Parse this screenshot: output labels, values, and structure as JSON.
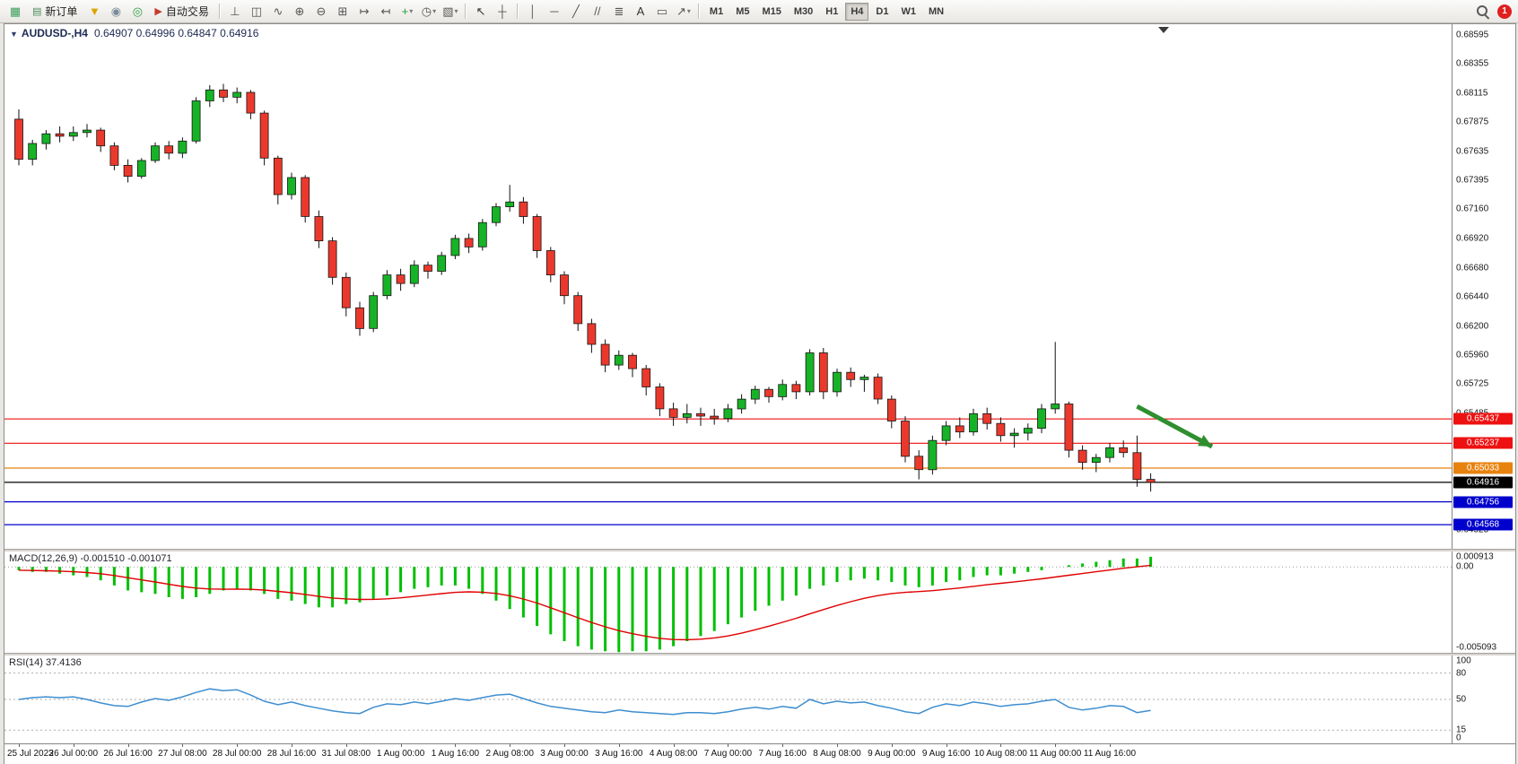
{
  "toolbar": {
    "items": [
      {
        "kind": "icon",
        "name": "new-chart-icon",
        "glyph": "▦",
        "color": "#3a9e5a"
      },
      {
        "kind": "label-button",
        "name": "new-order-button",
        "icon_glyph": "▤",
        "icon_color": "#4a8a5a",
        "label": "新订单"
      },
      {
        "kind": "icon",
        "name": "profiles-icon",
        "glyph": "▼",
        "color": "#dfa400"
      },
      {
        "kind": "icon",
        "name": "market-watch-icon",
        "glyph": "◉",
        "color": "#7b8a99"
      },
      {
        "kind": "icon",
        "name": "community-icon",
        "glyph": "◎",
        "color": "#2f9e44"
      },
      {
        "kind": "label-button",
        "name": "auto-trading-button",
        "icon_glyph": "▶",
        "icon_color": "#c43b2e",
        "label": "自动交易"
      },
      {
        "kind": "sep"
      },
      {
        "kind": "icon",
        "name": "bar-chart-icon",
        "glyph": "⊥",
        "color": "#555555"
      },
      {
        "kind": "icon",
        "name": "candlestick-chart-icon",
        "glyph": "◫",
        "color": "#555555"
      },
      {
        "kind": "icon",
        "name": "line-chart-icon",
        "glyph": "∿",
        "color": "#555555"
      },
      {
        "kind": "icon",
        "name": "zoom-in-icon",
        "glyph": "⊕",
        "color": "#555555"
      },
      {
        "kind": "icon",
        "name": "zoom-out-icon",
        "glyph": "⊖",
        "color": "#555555"
      },
      {
        "kind": "icon",
        "name": "tile-windows-icon",
        "glyph": "⊞",
        "color": "#555555"
      },
      {
        "kind": "icon",
        "name": "auto-scroll-icon",
        "glyph": "↦",
        "color": "#555555"
      },
      {
        "kind": "icon",
        "name": "chart-shift-icon",
        "glyph": "↤",
        "color": "#555555"
      },
      {
        "kind": "icon",
        "name": "indicators-icon",
        "glyph": "+",
        "color": "#1f9e3f",
        "caret": true
      },
      {
        "kind": "icon",
        "name": "periods-icon",
        "glyph": "◷",
        "color": "#555555",
        "caret": true
      },
      {
        "kind": "icon",
        "name": "templates-icon",
        "glyph": "▧",
        "color": "#555555",
        "caret": true
      },
      {
        "kind": "sep"
      },
      {
        "kind": "icon",
        "name": "cursor-icon",
        "glyph": "↖",
        "color": "#333333"
      },
      {
        "kind": "icon",
        "name": "crosshair-icon",
        "glyph": "┼",
        "color": "#555555"
      },
      {
        "kind": "sep"
      },
      {
        "kind": "icon",
        "name": "vertical-line-icon",
        "glyph": "│",
        "color": "#555555"
      },
      {
        "kind": "icon",
        "name": "horizontal-line-icon",
        "glyph": "─",
        "color": "#555555"
      },
      {
        "kind": "icon",
        "name": "trendline-icon",
        "glyph": "╱",
        "color": "#555555"
      },
      {
        "kind": "icon",
        "name": "channel-icon",
        "glyph": "//",
        "color": "#555555"
      },
      {
        "kind": "icon",
        "name": "fibonacci-icon",
        "glyph": "≣",
        "color": "#555555"
      },
      {
        "kind": "icon",
        "name": "text-icon",
        "glyph": "A",
        "color": "#333333"
      },
      {
        "kind": "icon",
        "name": "text-label-icon",
        "glyph": "▭",
        "color": "#555555"
      },
      {
        "kind": "icon",
        "name": "arrows-icon",
        "glyph": "↗",
        "color": "#555555",
        "caret": true
      },
      {
        "kind": "sep"
      }
    ],
    "timeframes": [
      "M1",
      "M5",
      "M15",
      "M30",
      "H1",
      "H4",
      "D1",
      "W1",
      "MN"
    ],
    "active_timeframe": "H4",
    "notification_count": "1"
  },
  "chart": {
    "collapse_icon": "▼",
    "title_symbol": "AUDUSD-,H4",
    "title_ohlc": "0.64907 0.64996 0.64847 0.64916"
  },
  "chart_data": {
    "type": "candlestick",
    "symbol_period": "AUDUSD-,H4",
    "ohlc_current": {
      "open": "0.64907",
      "high": "0.64996",
      "low": "0.64847",
      "close": "0.64916"
    },
    "y_axis_range": {
      "min": 0.6437,
      "max": 0.6868
    },
    "price_axis_labels": [
      "0.68595",
      "0.68355",
      "0.68115",
      "0.67875",
      "0.67635",
      "0.67395",
      "0.67160",
      "0.66920",
      "0.66680",
      "0.66440",
      "0.66200",
      "0.65960",
      "0.65725",
      "0.65485",
      "0.65245",
      "0.65005",
      "0.64765",
      "0.64525"
    ],
    "x_time_labels": [
      "25 Jul 2023",
      "26 Jul 00:00",
      "26 Jul 16:00",
      "27 Jul 08:00",
      "28 Jul 00:00",
      "28 Jul 16:00",
      "31 Jul 08:00",
      "1 Aug 00:00",
      "1 Aug 16:00",
      "2 Aug 08:00",
      "3 Aug 00:00",
      "3 Aug 16:00",
      "4 Aug 08:00",
      "7 Aug 00:00",
      "7 Aug 16:00",
      "8 Aug 08:00",
      "9 Aug 00:00",
      "9 Aug 16:00",
      "10 Aug 08:00",
      "11 Aug 00:00",
      "11 Aug 16:00"
    ],
    "horizontal_lines": [
      {
        "price": 0.65437,
        "color": "#ee1111",
        "label": "0.65437",
        "tag_bg": "#ee1111"
      },
      {
        "price": 0.65237,
        "color": "#ee1111",
        "label": "0.65237",
        "tag_bg": "#ee1111"
      },
      {
        "price": 0.65033,
        "color": "#e8820e",
        "label": "0.65033",
        "tag_bg": "#e8820e"
      },
      {
        "price": 0.64916,
        "color": "#000000",
        "label": "0.64916",
        "tag_bg": "#000000"
      },
      {
        "price": 0.64756,
        "color": "#0000cc",
        "label": "0.64756",
        "tag_bg": "#0000cc"
      },
      {
        "price": 0.64568,
        "color": "#0000cc",
        "label": "0.64568",
        "tag_bg": "#0000cc"
      }
    ],
    "colors": {
      "up": "#17b327",
      "down": "#ea392c",
      "wick": "#111111",
      "macd_bar": "#00c000",
      "macd_signal": "#e00000",
      "rsi_line": "#3e8ed0"
    },
    "candles_ohlc": [
      [
        0.679,
        0.6798,
        0.6752,
        0.6757
      ],
      [
        0.6757,
        0.6773,
        0.6752,
        0.677
      ],
      [
        0.677,
        0.6781,
        0.6765,
        0.6778
      ],
      [
        0.6778,
        0.6784,
        0.6771,
        0.6776
      ],
      [
        0.6776,
        0.6784,
        0.6772,
        0.6779
      ],
      [
        0.6779,
        0.6786,
        0.6775,
        0.6781
      ],
      [
        0.6781,
        0.6783,
        0.6763,
        0.6768
      ],
      [
        0.6768,
        0.6771,
        0.6748,
        0.6752
      ],
      [
        0.6752,
        0.6757,
        0.6738,
        0.6743
      ],
      [
        0.6743,
        0.6758,
        0.6741,
        0.6756
      ],
      [
        0.6756,
        0.6771,
        0.6754,
        0.6768
      ],
      [
        0.6768,
        0.6772,
        0.6757,
        0.6762
      ],
      [
        0.6762,
        0.6775,
        0.6758,
        0.6772
      ],
      [
        0.6772,
        0.6808,
        0.677,
        0.6805
      ],
      [
        0.6805,
        0.6818,
        0.68,
        0.6814
      ],
      [
        0.6814,
        0.6819,
        0.6804,
        0.6808
      ],
      [
        0.6808,
        0.6816,
        0.6803,
        0.6812
      ],
      [
        0.6812,
        0.6814,
        0.679,
        0.6795
      ],
      [
        0.6795,
        0.6797,
        0.6752,
        0.6758
      ],
      [
        0.6758,
        0.676,
        0.672,
        0.6728
      ],
      [
        0.6728,
        0.6746,
        0.6724,
        0.6742
      ],
      [
        0.6742,
        0.6744,
        0.6705,
        0.671
      ],
      [
        0.671,
        0.6715,
        0.6684,
        0.669
      ],
      [
        0.669,
        0.6693,
        0.6654,
        0.666
      ],
      [
        0.666,
        0.6664,
        0.6628,
        0.6635
      ],
      [
        0.6635,
        0.664,
        0.6612,
        0.6618
      ],
      [
        0.6618,
        0.6648,
        0.6615,
        0.6645
      ],
      [
        0.6645,
        0.6666,
        0.6642,
        0.6662
      ],
      [
        0.6662,
        0.6667,
        0.6649,
        0.6655
      ],
      [
        0.6655,
        0.6674,
        0.6652,
        0.667
      ],
      [
        0.667,
        0.6673,
        0.6659,
        0.6665
      ],
      [
        0.6665,
        0.6681,
        0.6662,
        0.6678
      ],
      [
        0.6678,
        0.6695,
        0.6675,
        0.6692
      ],
      [
        0.6692,
        0.6696,
        0.668,
        0.6685
      ],
      [
        0.6685,
        0.6708,
        0.6682,
        0.6705
      ],
      [
        0.6705,
        0.6721,
        0.6702,
        0.6718
      ],
      [
        0.6718,
        0.6736,
        0.6714,
        0.6722
      ],
      [
        0.6722,
        0.6726,
        0.6704,
        0.671
      ],
      [
        0.671,
        0.6712,
        0.6676,
        0.6682
      ],
      [
        0.6682,
        0.6685,
        0.6656,
        0.6662
      ],
      [
        0.6662,
        0.6665,
        0.6638,
        0.6645
      ],
      [
        0.6645,
        0.6648,
        0.6616,
        0.6622
      ],
      [
        0.6622,
        0.6626,
        0.6598,
        0.6605
      ],
      [
        0.6605,
        0.6609,
        0.6582,
        0.6588
      ],
      [
        0.6588,
        0.66,
        0.6584,
        0.6596
      ],
      [
        0.6596,
        0.6598,
        0.6578,
        0.6585
      ],
      [
        0.6585,
        0.6588,
        0.6563,
        0.657
      ],
      [
        0.657,
        0.6573,
        0.6546,
        0.6552
      ],
      [
        0.6552,
        0.6557,
        0.6538,
        0.6545
      ],
      [
        0.6545,
        0.6556,
        0.654,
        0.6548
      ],
      [
        0.6548,
        0.6553,
        0.6538,
        0.6546
      ],
      [
        0.6546,
        0.6552,
        0.6539,
        0.6544
      ],
      [
        0.6544,
        0.6556,
        0.6541,
        0.6552
      ],
      [
        0.6552,
        0.6564,
        0.6548,
        0.656
      ],
      [
        0.656,
        0.6571,
        0.6556,
        0.6568
      ],
      [
        0.6568,
        0.657,
        0.6557,
        0.6562
      ],
      [
        0.6562,
        0.6576,
        0.6559,
        0.6572
      ],
      [
        0.6572,
        0.6575,
        0.656,
        0.6566
      ],
      [
        0.6566,
        0.6601,
        0.6563,
        0.6598
      ],
      [
        0.6598,
        0.6602,
        0.656,
        0.6566
      ],
      [
        0.6566,
        0.6585,
        0.6562,
        0.6582
      ],
      [
        0.6582,
        0.6586,
        0.657,
        0.6576
      ],
      [
        0.6576,
        0.658,
        0.6566,
        0.6578
      ],
      [
        0.6578,
        0.6581,
        0.6556,
        0.656
      ],
      [
        0.656,
        0.6563,
        0.6536,
        0.6542
      ],
      [
        0.6542,
        0.6546,
        0.6508,
        0.6513
      ],
      [
        0.6513,
        0.6518,
        0.6494,
        0.6502
      ],
      [
        0.6502,
        0.653,
        0.6498,
        0.6526
      ],
      [
        0.6526,
        0.6542,
        0.6522,
        0.6538
      ],
      [
        0.6538,
        0.6545,
        0.6528,
        0.6533
      ],
      [
        0.6533,
        0.6552,
        0.653,
        0.6548
      ],
      [
        0.6548,
        0.6553,
        0.6535,
        0.654
      ],
      [
        0.654,
        0.6545,
        0.6525,
        0.653
      ],
      [
        0.653,
        0.6536,
        0.652,
        0.6532
      ],
      [
        0.6532,
        0.654,
        0.6526,
        0.6536
      ],
      [
        0.6536,
        0.6556,
        0.6532,
        0.6552
      ],
      [
        0.6552,
        0.6607,
        0.6548,
        0.6556
      ],
      [
        0.6556,
        0.6558,
        0.6512,
        0.6518
      ],
      [
        0.6518,
        0.6522,
        0.6502,
        0.6508
      ],
      [
        0.6508,
        0.6515,
        0.65,
        0.6512
      ],
      [
        0.6512,
        0.6524,
        0.6508,
        0.652
      ],
      [
        0.652,
        0.6526,
        0.6512,
        0.6516
      ],
      [
        0.6516,
        0.653,
        0.6488,
        0.6494
      ],
      [
        0.6494,
        0.6499,
        0.6484,
        0.64916
      ]
    ],
    "indicators": {
      "macd": {
        "label": "MACD(12,26,9) -0.001510 -0.001071",
        "params": "12,26,9",
        "main_value": -0.00151,
        "signal_value": -0.001071,
        "axis_labels": [
          "0.000913",
          "0.00",
          "-0.005093"
        ],
        "axis_range": {
          "min": -0.005093,
          "max": 0.000913
        },
        "histogram": [
          -0.0002,
          -0.0003,
          -0.0003,
          -0.0004,
          -0.0005,
          -0.0006,
          -0.0008,
          -0.0011,
          -0.0014,
          -0.0015,
          -0.0016,
          -0.0018,
          -0.0019,
          -0.0018,
          -0.0016,
          -0.0014,
          -0.0013,
          -0.0014,
          -0.0016,
          -0.0019,
          -0.002,
          -0.0022,
          -0.0024,
          -0.0024,
          -0.0022,
          -0.0021,
          -0.0019,
          -0.0017,
          -0.0015,
          -0.0013,
          -0.0012,
          -0.0011,
          -0.0011,
          -0.0013,
          -0.0016,
          -0.002,
          -0.0025,
          -0.003,
          -0.0035,
          -0.004,
          -0.0044,
          -0.0047,
          -0.0049,
          -0.005,
          -0.00505,
          -0.005,
          -0.005,
          -0.0049,
          -0.0047,
          -0.0044,
          -0.0041,
          -0.0038,
          -0.0034,
          -0.003,
          -0.0026,
          -0.0023,
          -0.002,
          -0.0017,
          -0.0013,
          -0.0011,
          -0.0009,
          -0.0008,
          -0.0007,
          -0.0008,
          -0.0009,
          -0.0011,
          -0.0012,
          -0.0011,
          -0.0009,
          -0.0008,
          -0.0006,
          -0.0005,
          -0.0005,
          -0.0004,
          -0.0003,
          -0.0002,
          0.0,
          0.0001,
          0.0002,
          0.0003,
          0.0004,
          0.0005,
          0.0005,
          0.0006
        ]
      },
      "rsi": {
        "label": "RSI(14) 37.4136",
        "period": 14,
        "current": 37.4136,
        "levels": [
          80,
          50,
          15
        ],
        "axis_labels": [
          "100",
          "80",
          "50",
          "15",
          "0"
        ],
        "axis_range": {
          "min": 0,
          "max": 100
        },
        "values": [
          50,
          52,
          53,
          52,
          53,
          50,
          46,
          43,
          42,
          47,
          51,
          49,
          53,
          58,
          62,
          60,
          61,
          55,
          48,
          44,
          47,
          43,
          40,
          37,
          35,
          34,
          41,
          45,
          44,
          47,
          45,
          48,
          51,
          49,
          52,
          55,
          56,
          51,
          46,
          42,
          40,
          38,
          36,
          35,
          38,
          36,
          35,
          34,
          33,
          35,
          35,
          34,
          36,
          39,
          41,
          39,
          42,
          40,
          50,
          45,
          48,
          46,
          47,
          43,
          40,
          36,
          34,
          41,
          45,
          43,
          47,
          45,
          42,
          44,
          45,
          48,
          50,
          41,
          38,
          40,
          43,
          42,
          35,
          37.4
        ]
      }
    },
    "annotations": [
      {
        "type": "arrow",
        "name": "sell-signal-arrow",
        "from": {
          "candle_index": 82,
          "price": 0.6554
        },
        "to": {
          "candle_index": 87.5,
          "price": 0.6521
        },
        "color": "#2f8f2f"
      }
    ]
  }
}
